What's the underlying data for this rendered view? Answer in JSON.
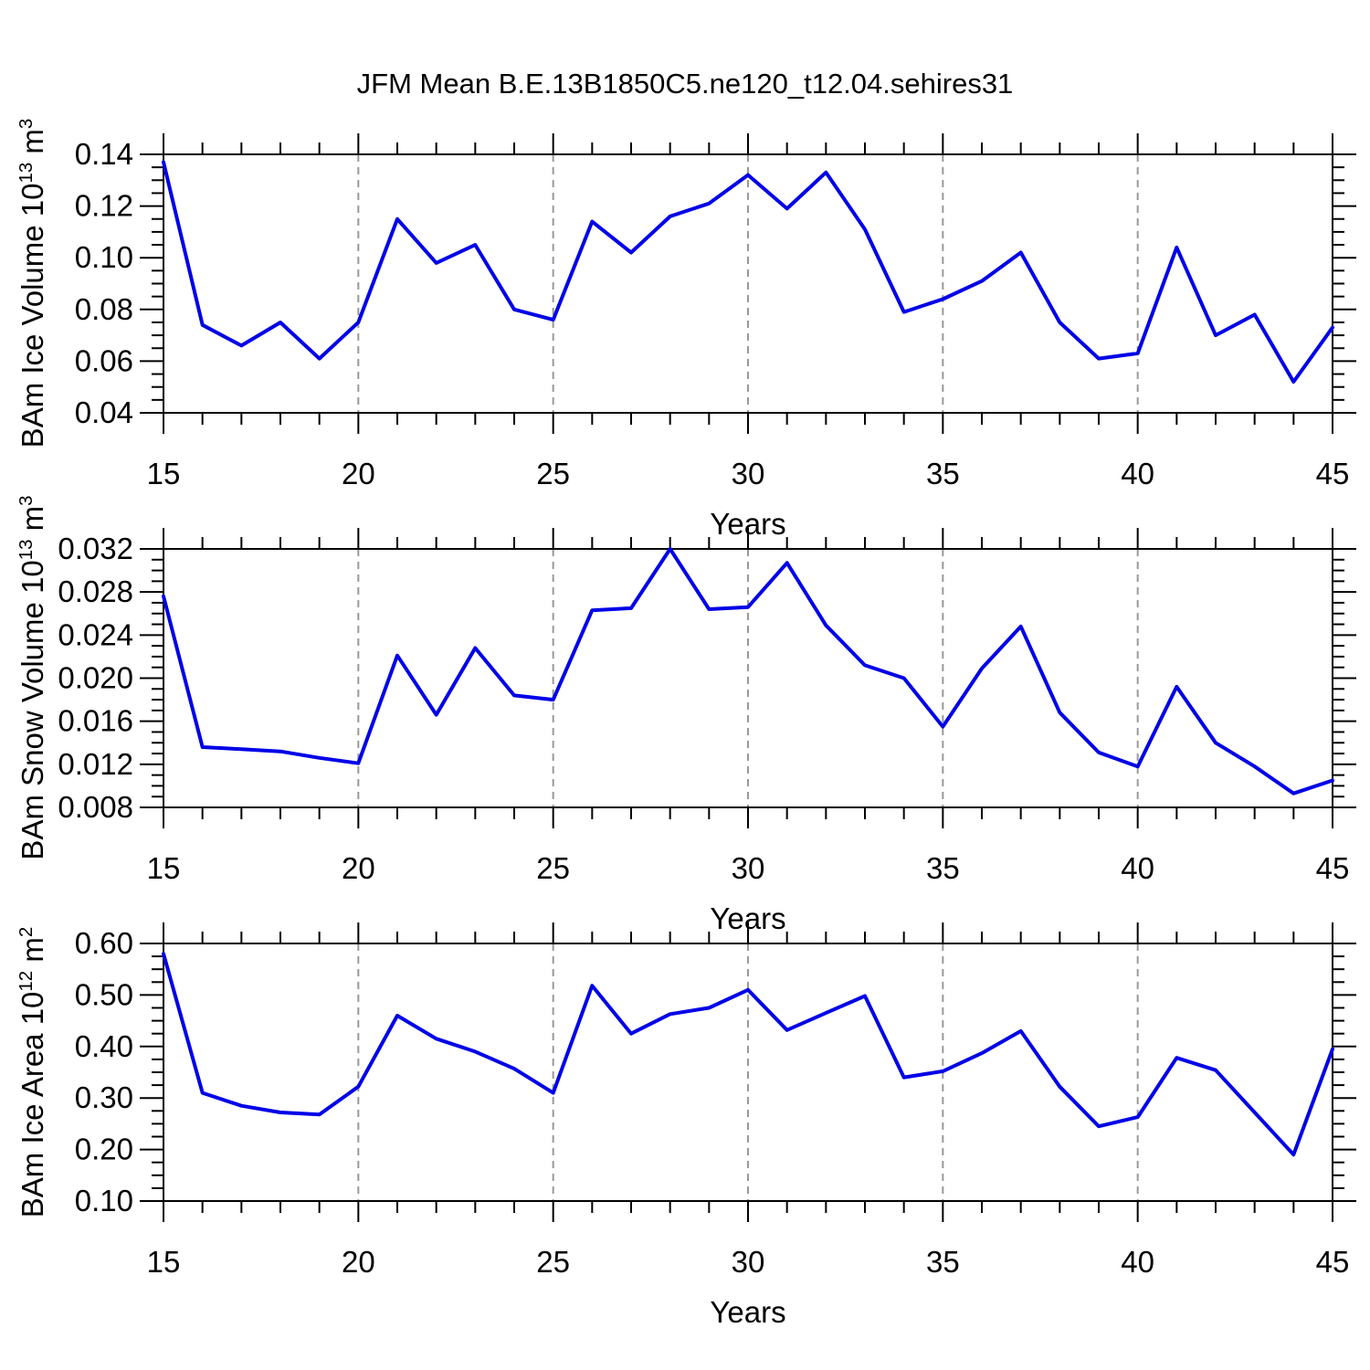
{
  "title": "JFM Mean B.E.13B1850C5.ne120_t12.04.sehires31",
  "colors": {
    "line": "#0000E8",
    "axis": "#000000",
    "gridline": "#999999",
    "background": "#FFFFFF",
    "text": "#000000"
  },
  "chart_data": [
    {
      "type": "line",
      "name": "ice-volume",
      "ylabel_text": "BAm Ice Volume 10^13 m^3",
      "ylabel_parts": {
        "prefix": "BAm Ice Volume 10",
        "exponent": "13",
        "unit": " m",
        "unit_exponent": "3"
      },
      "xlabel": "Years",
      "x": [
        15,
        16,
        17,
        18,
        19,
        20,
        21,
        22,
        23,
        24,
        25,
        26,
        27,
        28,
        29,
        30,
        31,
        32,
        33,
        34,
        35,
        36,
        37,
        38,
        39,
        40,
        41,
        42,
        43,
        44,
        45
      ],
      "values": [
        0.137,
        0.074,
        0.066,
        0.075,
        0.061,
        0.075,
        0.115,
        0.098,
        0.105,
        0.08,
        0.076,
        0.114,
        0.102,
        0.116,
        0.121,
        0.132,
        0.119,
        0.133,
        0.111,
        0.079,
        0.084,
        0.091,
        0.102,
        0.075,
        0.061,
        0.063,
        0.104,
        0.07,
        0.078,
        0.052,
        0.073
      ],
      "ylim": [
        0.04,
        0.14
      ],
      "ytick_step": 0.02,
      "yminor_step": 0.005,
      "ytick_decimals": 2,
      "ytick_labels": [
        "0.04",
        "0.06",
        "0.08",
        "0.10",
        "0.12",
        "0.14"
      ],
      "xlim": [
        15,
        45
      ],
      "xtick_step": 5,
      "xminor_step": 1,
      "xtick_labels": [
        "15",
        "20",
        "25",
        "30",
        "35",
        "40",
        "45"
      ],
      "grid_x": [
        20,
        25,
        30,
        35,
        40
      ],
      "grid": "vertical-dashed-only"
    },
    {
      "type": "line",
      "name": "snow-volume",
      "ylabel_text": "BAm Snow Volume 10^13 m^3",
      "ylabel_parts": {
        "prefix": "BAm Snow Volume 10",
        "exponent": "13",
        "unit": " m",
        "unit_exponent": "3"
      },
      "xlabel": "Years",
      "x": [
        15,
        16,
        17,
        18,
        19,
        20,
        21,
        22,
        23,
        24,
        25,
        26,
        27,
        28,
        29,
        30,
        31,
        32,
        33,
        34,
        35,
        36,
        37,
        38,
        39,
        40,
        41,
        42,
        43,
        44,
        45
      ],
      "values": [
        0.0276,
        0.0136,
        0.0134,
        0.0132,
        0.0126,
        0.0121,
        0.0221,
        0.0166,
        0.0228,
        0.0184,
        0.018,
        0.0263,
        0.0265,
        0.032,
        0.0264,
        0.0266,
        0.0307,
        0.0249,
        0.0212,
        0.02,
        0.0155,
        0.0209,
        0.0248,
        0.0168,
        0.0131,
        0.0118,
        0.0192,
        0.014,
        0.0118,
        0.0093,
        0.0105
      ],
      "ylim": [
        0.008,
        0.032
      ],
      "ytick_step": 0.004,
      "yminor_step": 0.001,
      "ytick_decimals": 3,
      "ytick_labels": [
        "0.008",
        "0.012",
        "0.016",
        "0.020",
        "0.024",
        "0.028",
        "0.032"
      ],
      "xlim": [
        15,
        45
      ],
      "xtick_step": 5,
      "xminor_step": 1,
      "xtick_labels": [
        "15",
        "20",
        "25",
        "30",
        "35",
        "40",
        "45"
      ],
      "grid_x": [
        20,
        25,
        30,
        35,
        40
      ],
      "grid": "vertical-dashed-only"
    },
    {
      "type": "line",
      "name": "ice-area",
      "ylabel_text": "BAm Ice Area 10^12 m^2",
      "ylabel_parts": {
        "prefix": "BAm Ice Area 10",
        "exponent": "12",
        "unit": " m",
        "unit_exponent": "2"
      },
      "xlabel": "Years",
      "x": [
        15,
        16,
        17,
        18,
        19,
        20,
        21,
        22,
        23,
        24,
        25,
        26,
        27,
        28,
        29,
        30,
        31,
        32,
        33,
        34,
        35,
        36,
        37,
        38,
        39,
        40,
        41,
        42,
        43,
        44,
        45
      ],
      "values": [
        0.58,
        0.31,
        0.285,
        0.272,
        0.268,
        0.322,
        0.46,
        0.415,
        0.39,
        0.357,
        0.31,
        0.518,
        0.425,
        0.463,
        0.475,
        0.51,
        0.432,
        0.465,
        0.498,
        0.34,
        0.352,
        0.387,
        0.43,
        0.322,
        0.245,
        0.263,
        0.378,
        0.354,
        0.272,
        0.19,
        0.395
      ],
      "ylim": [
        0.1,
        0.6
      ],
      "ytick_step": 0.1,
      "yminor_step": 0.025,
      "ytick_decimals": 2,
      "ytick_labels": [
        "0.10",
        "0.20",
        "0.30",
        "0.40",
        "0.50",
        "0.60"
      ],
      "xlim": [
        15,
        45
      ],
      "xtick_step": 5,
      "xminor_step": 1,
      "xtick_labels": [
        "15",
        "20",
        "25",
        "30",
        "35",
        "40",
        "45"
      ],
      "grid_x": [
        20,
        25,
        30,
        35,
        40
      ],
      "grid": "vertical-dashed-only"
    }
  ]
}
